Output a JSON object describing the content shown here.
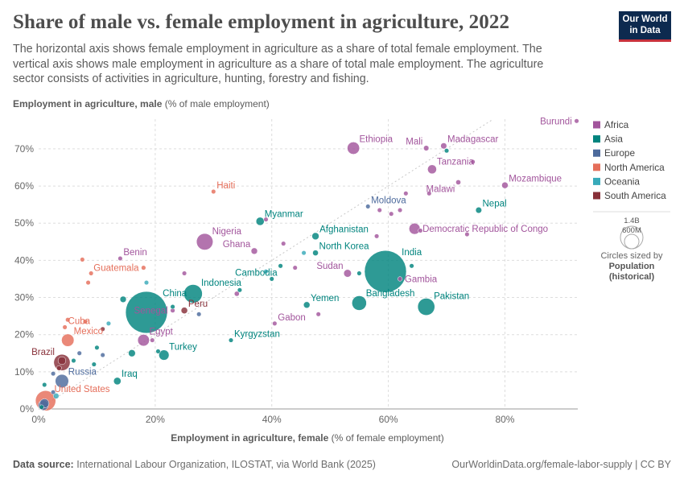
{
  "header": {
    "title": "Share of male vs. female employment in agriculture, 2022",
    "subtitle": "The horizontal axis shows female employment in agriculture as a share of total female employment. The vertical axis shows male employment in agriculture as a share of total male employment. The agriculture sector consists of activities in agriculture, hunting, forestry and fishing.",
    "logo_line1": "Our World",
    "logo_line2": "in Data"
  },
  "footer": {
    "source_label": "Data source:",
    "source_text": "International Labour Organization, ILOSTAT, via World Bank (2025)",
    "url": "OurWorldinData.org/female-labor-supply | CC BY"
  },
  "colors": {
    "Africa": "#a2559c",
    "Asia": "#00847e",
    "Europe": "#4c6a9c",
    "North America": "#e56e5a",
    "Oceania": "#38aaba",
    "South America": "#883039"
  },
  "chart_data": {
    "type": "scatter",
    "title": "Share of male vs. female employment in agriculture, 2022",
    "xlabel_bold": "Employment in agriculture, female",
    "xlabel_rest": " (% of female employment)",
    "ylabel_bold": "Employment in agriculture, male",
    "ylabel_rest": " (% of male employment)",
    "xlim": [
      0,
      92.5
    ],
    "ylim": [
      0,
      78
    ],
    "xticks": [
      0,
      20,
      40,
      60,
      80
    ],
    "yticks": [
      0,
      10,
      20,
      30,
      40,
      50,
      60,
      70
    ],
    "xtick_labels": [
      "0%",
      "20%",
      "40%",
      "60%",
      "80%"
    ],
    "ytick_labels": [
      "0%",
      "10%",
      "20%",
      "30%",
      "40%",
      "50%",
      "60%",
      "70%"
    ],
    "reference_line": "y = x",
    "legend": {
      "entries": [
        "Africa",
        "Asia",
        "Europe",
        "North America",
        "Oceania",
        "South America"
      ],
      "size_max_label": "1.4B",
      "size_mid_label": "600M",
      "size_caption": "Circles sized by",
      "size_bold_1": "Population",
      "size_bold_2": "(historical)"
    },
    "points": [
      {
        "label": "Burundi",
        "x": 92.3,
        "y": 77.5,
        "region": "Africa",
        "pop": 13,
        "label_pos": "left"
      },
      {
        "label": "Ethiopia",
        "x": 54,
        "y": 70.2,
        "region": "Africa",
        "pop": 123,
        "label_pos": "top-right"
      },
      {
        "label": "Mali",
        "x": 66.5,
        "y": 70.2,
        "region": "Africa",
        "pop": 23,
        "label_pos": "top-left"
      },
      {
        "label": "Madagascar",
        "x": 69.5,
        "y": 70.8,
        "region": "Africa",
        "pop": 30,
        "label_pos": "top-right"
      },
      {
        "label": "",
        "x": 70,
        "y": 69.5,
        "region": "Asia",
        "pop": 6
      },
      {
        "label": "Tanzania",
        "x": 67.5,
        "y": 64.5,
        "region": "Africa",
        "pop": 65,
        "label_pos": "top-right"
      },
      {
        "label": "",
        "x": 74.5,
        "y": 66.5,
        "region": "Africa",
        "pop": 5
      },
      {
        "label": "Malawi",
        "x": 72,
        "y": 61,
        "region": "Africa",
        "pop": 20,
        "label_pos": "bottom-left"
      },
      {
        "label": "Mozambique",
        "x": 80,
        "y": 60.2,
        "region": "Africa",
        "pop": 33,
        "label_pos": "top-right"
      },
      {
        "label": "Haiti",
        "x": 30,
        "y": 58.5,
        "region": "North America",
        "pop": 11,
        "label_pos": "top-right"
      },
      {
        "label": "",
        "x": 63,
        "y": 58,
        "region": "Africa",
        "pop": 5
      },
      {
        "label": "",
        "x": 67,
        "y": 58,
        "region": "Africa",
        "pop": 4
      },
      {
        "label": "Nepal",
        "x": 75.5,
        "y": 53.5,
        "region": "Asia",
        "pop": 30,
        "label_pos": "top-right"
      },
      {
        "label": "Moldova",
        "x": 56.5,
        "y": 54.5,
        "region": "Europe",
        "pop": 3,
        "label_pos": "top-right"
      },
      {
        "label": "",
        "x": 58.5,
        "y": 53.5,
        "region": "Africa",
        "pop": 5
      },
      {
        "label": "",
        "x": 60.5,
        "y": 52.5,
        "region": "Africa",
        "pop": 8
      },
      {
        "label": "",
        "x": 62,
        "y": 53.5,
        "region": "Africa",
        "pop": 5
      },
      {
        "label": "Myanmar",
        "x": 38,
        "y": 50.5,
        "region": "Asia",
        "pop": 54,
        "label_pos": "top-right"
      },
      {
        "label": "",
        "x": 39,
        "y": 51,
        "region": "Africa",
        "pop": 5
      },
      {
        "label": "Democratic Republic of Congo",
        "x": 64.5,
        "y": 48.5,
        "region": "Africa",
        "pop": 100,
        "label_pos": "right"
      },
      {
        "label": "",
        "x": 65.5,
        "y": 48,
        "region": "Africa",
        "pop": 5
      },
      {
        "label": "",
        "x": 73.5,
        "y": 47,
        "region": "Africa",
        "pop": 4
      },
      {
        "label": "Afghanistan",
        "x": 47.5,
        "y": 46.5,
        "region": "Asia",
        "pop": 41,
        "label_pos": "top-right"
      },
      {
        "label": "",
        "x": 58,
        "y": 46.5,
        "region": "Africa",
        "pop": 4
      },
      {
        "label": "Nigeria",
        "x": 28.5,
        "y": 45,
        "region": "Africa",
        "pop": 220,
        "label_pos": "top-right"
      },
      {
        "label": "Ghana",
        "x": 37,
        "y": 42.5,
        "region": "Africa",
        "pop": 33,
        "label_pos": "top-left"
      },
      {
        "label": "",
        "x": 42,
        "y": 44.5,
        "region": "Africa",
        "pop": 4
      },
      {
        "label": "North Korea",
        "x": 47.5,
        "y": 42,
        "region": "Asia",
        "pop": 26,
        "label_pos": "top-right"
      },
      {
        "label": "",
        "x": 45.5,
        "y": 42,
        "region": "Oceania",
        "pop": 3
      },
      {
        "label": "Benin",
        "x": 14,
        "y": 40.5,
        "region": "Africa",
        "pop": 13,
        "label_pos": "top-right"
      },
      {
        "label": "",
        "x": 7.5,
        "y": 40.2,
        "region": "North America",
        "pop": 3
      },
      {
        "label": "Guatemala",
        "x": 18,
        "y": 38,
        "region": "North America",
        "pop": 17,
        "label_pos": "left"
      },
      {
        "label": "India",
        "x": 59.5,
        "y": 37,
        "region": "Asia",
        "pop": 1420,
        "label_pos": "top-right"
      },
      {
        "label": "Sudan",
        "x": 53,
        "y": 36.5,
        "region": "Africa",
        "pop": 47,
        "label_pos": "top-left"
      },
      {
        "label": "Cambodia",
        "x": 41.5,
        "y": 38.5,
        "region": "Asia",
        "pop": 17,
        "label_pos": "bottom-left"
      },
      {
        "label": "",
        "x": 44,
        "y": 38,
        "region": "Africa",
        "pop": 4
      },
      {
        "label": "",
        "x": 39,
        "y": 37,
        "region": "Oceania",
        "pop": 3
      },
      {
        "label": "",
        "x": 40,
        "y": 35,
        "region": "Asia",
        "pop": 4
      },
      {
        "label": "",
        "x": 55,
        "y": 36.5,
        "region": "Asia",
        "pop": 4
      },
      {
        "label": "Gambia",
        "x": 62,
        "y": 35,
        "region": "Africa",
        "pop": 3,
        "label_pos": "right"
      },
      {
        "label": "",
        "x": 64,
        "y": 38.5,
        "region": "Asia",
        "pop": 3
      },
      {
        "label": "",
        "x": 25,
        "y": 36.5,
        "region": "Africa",
        "pop": 4
      },
      {
        "label": "",
        "x": 9,
        "y": 36.5,
        "region": "North America",
        "pop": 3
      },
      {
        "label": "",
        "x": 8.5,
        "y": 34,
        "region": "North America",
        "pop": 3
      },
      {
        "label": "Indonesia",
        "x": 26.5,
        "y": 31,
        "region": "Asia",
        "pop": 276,
        "label_pos": "top-right"
      },
      {
        "label": "",
        "x": 34.5,
        "y": 32,
        "region": "Asia",
        "pop": 16
      },
      {
        "label": "",
        "x": 34,
        "y": 31,
        "region": "Africa",
        "pop": 20
      },
      {
        "label": "",
        "x": 14.5,
        "y": 29.5,
        "region": "Asia",
        "pop": 32
      },
      {
        "label": "",
        "x": 18.5,
        "y": 34,
        "region": "Oceania",
        "pop": 3
      },
      {
        "label": "China",
        "x": 18.5,
        "y": 26,
        "region": "Asia",
        "pop": 1412,
        "label_pos": "top-right"
      },
      {
        "label": "Senegal",
        "x": 23,
        "y": 26.5,
        "region": "Africa",
        "pop": 17,
        "label_pos": "left"
      },
      {
        "label": "Peru",
        "x": 25,
        "y": 26.5,
        "region": "South America",
        "pop": 34,
        "label_pos": "top-right"
      },
      {
        "label": "",
        "x": 23,
        "y": 27.5,
        "region": "Asia",
        "pop": 4
      },
      {
        "label": "",
        "x": 27.5,
        "y": 25.5,
        "region": "Europe",
        "pop": 4
      },
      {
        "label": "Bangladesh",
        "x": 55,
        "y": 28.5,
        "region": "Asia",
        "pop": 171,
        "label_pos": "top-right"
      },
      {
        "label": "Pakistan",
        "x": 66.5,
        "y": 27.5,
        "region": "Asia",
        "pop": 236,
        "label_pos": "top-right"
      },
      {
        "label": "Yemen",
        "x": 46,
        "y": 28,
        "region": "Asia",
        "pop": 33,
        "label_pos": "top-right"
      },
      {
        "label": "",
        "x": 48,
        "y": 25.5,
        "region": "Africa",
        "pop": 8
      },
      {
        "label": "Gabon",
        "x": 40.5,
        "y": 23,
        "region": "Africa",
        "pop": 2,
        "label_pos": "top-right"
      },
      {
        "label": "",
        "x": 12,
        "y": 23,
        "region": "Oceania",
        "pop": 3
      },
      {
        "label": "",
        "x": 5,
        "y": 24,
        "region": "North America",
        "pop": 3
      },
      {
        "label": "Cuba",
        "x": 4.5,
        "y": 22,
        "region": "North America",
        "pop": 11,
        "label_pos": "top-right"
      },
      {
        "label": "",
        "x": 8,
        "y": 23.5,
        "region": "North America",
        "pop": 3
      },
      {
        "label": "",
        "x": 11,
        "y": 21.5,
        "region": "South America",
        "pop": 3
      },
      {
        "label": "Egypt",
        "x": 18,
        "y": 18.5,
        "region": "Africa",
        "pop": 111,
        "label_pos": "top-right"
      },
      {
        "label": "",
        "x": 19.5,
        "y": 18.5,
        "region": "Africa",
        "pop": 12
      },
      {
        "label": "Mexico",
        "x": 5,
        "y": 18.5,
        "region": "North America",
        "pop": 127,
        "label_pos": "top-right"
      },
      {
        "label": "Turkey",
        "x": 21.5,
        "y": 14.5,
        "region": "Asia",
        "pop": 85,
        "label_pos": "top-right"
      },
      {
        "label": "",
        "x": 16,
        "y": 15,
        "region": "Asia",
        "pop": 40
      },
      {
        "label": "",
        "x": 20.5,
        "y": 15.5,
        "region": "Asia",
        "pop": 5
      },
      {
        "label": "Kyrgyzstan",
        "x": 33,
        "y": 18.5,
        "region": "Asia",
        "pop": 7,
        "label_pos": "top-right"
      },
      {
        "label": "Brazil",
        "x": 4,
        "y": 12.5,
        "region": "South America",
        "pop": 215,
        "label_pos": "top-left"
      },
      {
        "label": "",
        "x": 3.5,
        "y": 11,
        "region": "South America",
        "pop": 20
      },
      {
        "label": "",
        "x": 4,
        "y": 13,
        "region": "South America",
        "pop": 50
      },
      {
        "label": "",
        "x": 6,
        "y": 13,
        "region": "Asia",
        "pop": 8
      },
      {
        "label": "",
        "x": 10,
        "y": 16.5,
        "region": "Asia",
        "pop": 5
      },
      {
        "label": "",
        "x": 7,
        "y": 15,
        "region": "Europe",
        "pop": 5
      },
      {
        "label": "",
        "x": 11,
        "y": 14.5,
        "region": "Europe",
        "pop": 4
      },
      {
        "label": "Russia",
        "x": 4,
        "y": 7.5,
        "region": "Europe",
        "pop": 144,
        "label_pos": "top-right"
      },
      {
        "label": "Iraq",
        "x": 13.5,
        "y": 7.5,
        "region": "Asia",
        "pop": 44,
        "label_pos": "top-right"
      },
      {
        "label": "",
        "x": 9.5,
        "y": 12,
        "region": "Asia",
        "pop": 4
      },
      {
        "label": "",
        "x": 2.5,
        "y": 9.5,
        "region": "Europe",
        "pop": 6
      },
      {
        "label": "",
        "x": 1,
        "y": 6.5,
        "region": "Asia",
        "pop": 4
      },
      {
        "label": "",
        "x": 2.5,
        "y": 4.5,
        "region": "Europe",
        "pop": 5
      },
      {
        "label": "",
        "x": 3,
        "y": 3.5,
        "region": "Oceania",
        "pop": 26
      },
      {
        "label": "United States",
        "x": 1.2,
        "y": 2.2,
        "region": "North America",
        "pop": 333,
        "label_pos": "top-right"
      },
      {
        "label": "",
        "x": 1,
        "y": 1.5,
        "region": "Europe",
        "pop": 68
      },
      {
        "label": "",
        "x": 0.8,
        "y": 1,
        "region": "Europe",
        "pop": 84
      },
      {
        "label": "",
        "x": 0.5,
        "y": 0.5,
        "region": "Asia",
        "pop": 5
      }
    ]
  }
}
